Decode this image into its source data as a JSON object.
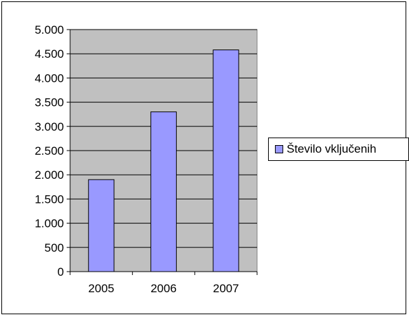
{
  "chart_data": {
    "type": "bar",
    "categories": [
      "2005",
      "2006",
      "2007"
    ],
    "series": [
      {
        "name": "Število vključenih",
        "values": [
          1900,
          3300,
          4580
        ]
      }
    ],
    "ylim": [
      0,
      5000
    ],
    "yticks": [
      0,
      500,
      1000,
      1500,
      2000,
      2500,
      3000,
      3500,
      4000,
      4500,
      5000
    ],
    "ytick_labels": [
      "0",
      "500",
      "1.000",
      "1.500",
      "2.000",
      "2.500",
      "3.000",
      "3.500",
      "4.000",
      "4.500",
      "5.000"
    ],
    "grid": true,
    "legend_position": "right",
    "colors": {
      "bar": "#9999ff",
      "plot_background": "#c0c0c0",
      "gridline": "#000000"
    }
  }
}
